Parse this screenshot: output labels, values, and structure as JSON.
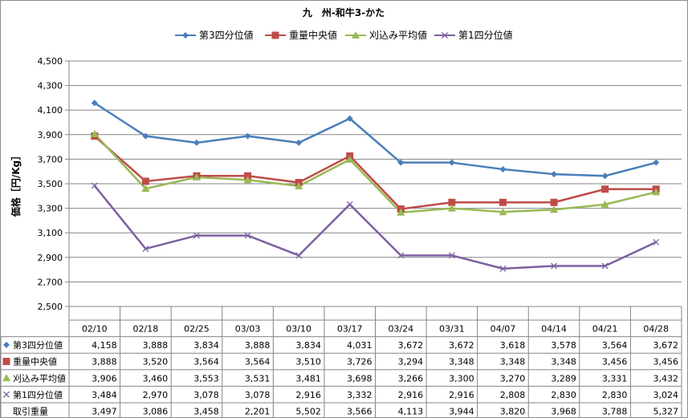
{
  "chart_data": {
    "type": "line",
    "title": "九　州-和牛3-かた",
    "ylabel": "価格［円/Kg］",
    "ylim": [
      2500,
      4500
    ],
    "yticks": [
      "2,500",
      "2,700",
      "2,900",
      "3,100",
      "3,300",
      "3,500",
      "3,700",
      "3,900",
      "4,100",
      "4,300",
      "4,500"
    ],
    "grid": true,
    "legend_position": "top",
    "categories": [
      "02/10",
      "02/18",
      "02/25",
      "03/03",
      "03/10",
      "03/17",
      "03/24",
      "03/31",
      "04/07",
      "04/14",
      "04/21",
      "04/28"
    ],
    "series": [
      {
        "name": "第3四分位値",
        "color": "#4a7ebb",
        "marker": "diamond",
        "values": [
          4158,
          3888,
          3834,
          3888,
          3834,
          4031,
          3672,
          3672,
          3618,
          3578,
          3564,
          3672
        ],
        "labels": [
          "4,158",
          "3,888",
          "3,834",
          "3,888",
          "3,834",
          "4,031",
          "3,672",
          "3,672",
          "3,618",
          "3,578",
          "3,564",
          "3,672"
        ]
      },
      {
        "name": "重量中央値",
        "color": "#be4b48",
        "marker": "square",
        "values": [
          3888,
          3520,
          3564,
          3564,
          3510,
          3726,
          3294,
          3348,
          3348,
          3348,
          3456,
          3456
        ],
        "labels": [
          "3,888",
          "3,520",
          "3,564",
          "3,564",
          "3,510",
          "3,726",
          "3,294",
          "3,348",
          "3,348",
          "3,348",
          "3,456",
          "3,456"
        ]
      },
      {
        "name": "刈込み平均値",
        "color": "#98b954",
        "marker": "triangle",
        "values": [
          3906,
          3460,
          3553,
          3531,
          3481,
          3698,
          3266,
          3300,
          3270,
          3289,
          3331,
          3432
        ],
        "labels": [
          "3,906",
          "3,460",
          "3,553",
          "3,531",
          "3,481",
          "3,698",
          "3,266",
          "3,300",
          "3,270",
          "3,289",
          "3,331",
          "3,432"
        ]
      },
      {
        "name": "第1四分位値",
        "color": "#7d60a0",
        "marker": "x",
        "values": [
          3484,
          2970,
          3078,
          3078,
          2916,
          3332,
          2916,
          2916,
          2808,
          2830,
          2830,
          3024
        ],
        "labels": [
          "3,484",
          "2,970",
          "3,078",
          "3,078",
          "2,916",
          "3,332",
          "2,916",
          "2,916",
          "2,808",
          "2,830",
          "2,830",
          "3,024"
        ]
      }
    ],
    "table_extra_row": {
      "name": "取引重量",
      "values": [
        3497,
        3086,
        3458,
        2201,
        5502,
        3566,
        4113,
        3944,
        3820,
        3968,
        3788,
        5327
      ],
      "labels": [
        "3,497",
        "3,086",
        "3,458",
        "2,201",
        "5,502",
        "3,566",
        "4,113",
        "3,944",
        "3,820",
        "3,968",
        "3,788",
        "5,327"
      ]
    }
  }
}
